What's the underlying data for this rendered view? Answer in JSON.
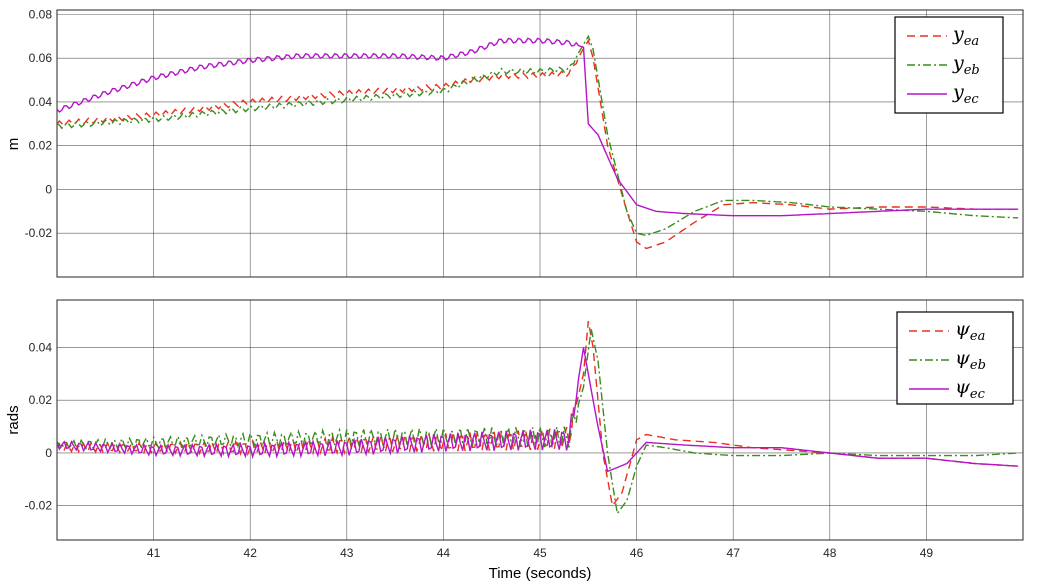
{
  "chart_data": [
    {
      "type": "line",
      "ylabel": "m",
      "xlim": [
        40.0,
        50.0
      ],
      "ylim": [
        -0.04,
        0.082
      ],
      "x_ticks": [
        "41",
        "42",
        "43",
        "44",
        "45",
        "46",
        "47",
        "48",
        "49"
      ],
      "y_ticks": [
        "0.08",
        "0.06",
        "0.04",
        "0.02",
        "0",
        "-0.02"
      ],
      "grid": true,
      "legend_position": "top-right",
      "legend": [
        {
          "main": "y",
          "sub": "ea"
        },
        {
          "main": "y",
          "sub": "eb"
        },
        {
          "main": "y",
          "sub": "ec"
        }
      ],
      "series": [
        {
          "name": "y_ea",
          "color": "#e8301e",
          "dash": "8,5",
          "points": [
            [
              40,
              0.03
            ],
            [
              41,
              0.034
            ],
            [
              42,
              0.04
            ],
            [
              43,
              0.044
            ],
            [
              44,
              0.047
            ],
            [
              44.3,
              0.05
            ],
            [
              44.6,
              0.052
            ],
            [
              45,
              0.052
            ],
            [
              45.3,
              0.053
            ],
            [
              45.5,
              0.068
            ],
            [
              45.55,
              0.06
            ],
            [
              45.7,
              0.02
            ],
            [
              45.9,
              -0.01
            ],
            [
              46,
              -0.024
            ],
            [
              46.1,
              -0.027
            ],
            [
              46.3,
              -0.024
            ],
            [
              46.6,
              -0.015
            ],
            [
              46.9,
              -0.007
            ],
            [
              47.2,
              -0.006
            ],
            [
              47.6,
              -0.007
            ],
            [
              48,
              -0.009
            ],
            [
              48.5,
              -0.008
            ],
            [
              49,
              -0.008
            ],
            [
              49.5,
              -0.009
            ],
            [
              49.95,
              -0.009
            ]
          ]
        },
        {
          "name": "y_eb",
          "color": "#3a8c1e",
          "dash": "8,3,2,3",
          "points": [
            [
              40,
              0.029
            ],
            [
              41,
              0.032
            ],
            [
              42,
              0.037
            ],
            [
              43,
              0.041
            ],
            [
              44,
              0.045
            ],
            [
              44.3,
              0.05
            ],
            [
              44.6,
              0.054
            ],
            [
              45,
              0.054
            ],
            [
              45.3,
              0.055
            ],
            [
              45.5,
              0.07
            ],
            [
              45.55,
              0.064
            ],
            [
              45.7,
              0.025
            ],
            [
              45.9,
              -0.01
            ],
            [
              46,
              -0.02
            ],
            [
              46.1,
              -0.021
            ],
            [
              46.3,
              -0.018
            ],
            [
              46.6,
              -0.01
            ],
            [
              46.9,
              -0.005
            ],
            [
              47.2,
              -0.005
            ],
            [
              47.6,
              -0.006
            ],
            [
              48,
              -0.008
            ],
            [
              48.5,
              -0.009
            ],
            [
              49,
              -0.01
            ],
            [
              49.5,
              -0.012
            ],
            [
              49.95,
              -0.013
            ]
          ]
        },
        {
          "name": "y_ec",
          "color": "#b515c8",
          "dash": "",
          "points": [
            [
              40,
              0.036
            ],
            [
              40.5,
              0.044
            ],
            [
              41,
              0.051
            ],
            [
              41.5,
              0.056
            ],
            [
              42,
              0.059
            ],
            [
              42.5,
              0.061
            ],
            [
              43,
              0.061
            ],
            [
              43.5,
              0.061
            ],
            [
              44,
              0.06
            ],
            [
              44.3,
              0.063
            ],
            [
              44.6,
              0.068
            ],
            [
              45,
              0.068
            ],
            [
              45.3,
              0.067
            ],
            [
              45.45,
              0.065
            ],
            [
              45.5,
              0.03
            ],
            [
              45.6,
              0.025
            ],
            [
              45.8,
              0.005
            ],
            [
              46,
              -0.007
            ],
            [
              46.2,
              -0.01
            ],
            [
              46.5,
              -0.011
            ],
            [
              47,
              -0.012
            ],
            [
              47.5,
              -0.012
            ],
            [
              48,
              -0.011
            ],
            [
              48.5,
              -0.01
            ],
            [
              49,
              -0.009
            ],
            [
              49.5,
              -0.009
            ],
            [
              49.95,
              -0.009
            ]
          ]
        }
      ]
    },
    {
      "type": "line",
      "xlabel": "Time (seconds)",
      "ylabel": "rads",
      "xlim": [
        40.0,
        50.0
      ],
      "ylim": [
        -0.033,
        0.058
      ],
      "x_ticks": [
        "41",
        "42",
        "43",
        "44",
        "45",
        "46",
        "47",
        "48",
        "49"
      ],
      "y_ticks": [
        "0.04",
        "0.02",
        "0",
        "-0.02"
      ],
      "grid": true,
      "legend_position": "top-right",
      "legend": [
        {
          "main": "ψ",
          "sub": "ea"
        },
        {
          "main": "ψ",
          "sub": "eb"
        },
        {
          "main": "ψ",
          "sub": "ec"
        }
      ],
      "series": [
        {
          "name": "psi_ea",
          "color": "#e8301e",
          "dash": "8,5",
          "points": [
            [
              40,
              0.002
            ],
            [
              41,
              0.002
            ],
            [
              42,
              0.002
            ],
            [
              43,
              0.003
            ],
            [
              44,
              0.004
            ],
            [
              45,
              0.005
            ],
            [
              45.3,
              0.006
            ],
            [
              45.45,
              0.03
            ],
            [
              45.5,
              0.05
            ],
            [
              45.55,
              0.04
            ],
            [
              45.65,
              0.0
            ],
            [
              45.75,
              -0.02
            ],
            [
              45.85,
              -0.015
            ],
            [
              46,
              0.005
            ],
            [
              46.1,
              0.007
            ],
            [
              46.4,
              0.005
            ],
            [
              46.8,
              0.004
            ],
            [
              47.2,
              0.002
            ],
            [
              47.6,
              0.001
            ],
            [
              48,
              0.0
            ],
            [
              48.5,
              -0.002
            ],
            [
              49,
              -0.002
            ],
            [
              49.5,
              -0.004
            ],
            [
              49.95,
              -0.005
            ]
          ]
        },
        {
          "name": "psi_eb",
          "color": "#3a8c1e",
          "dash": "8,3,2,3",
          "points": [
            [
              40,
              0.003
            ],
            [
              41,
              0.004
            ],
            [
              42,
              0.005
            ],
            [
              43,
              0.006
            ],
            [
              44,
              0.006
            ],
            [
              45,
              0.006
            ],
            [
              45.3,
              0.006
            ],
            [
              45.45,
              0.025
            ],
            [
              45.53,
              0.047
            ],
            [
              45.6,
              0.035
            ],
            [
              45.7,
              0.0
            ],
            [
              45.8,
              -0.023
            ],
            [
              45.9,
              -0.018
            ],
            [
              46,
              -0.005
            ],
            [
              46.1,
              0.003
            ],
            [
              46.3,
              0.002
            ],
            [
              46.6,
              0.0
            ],
            [
              47,
              -0.001
            ],
            [
              47.5,
              -0.001
            ],
            [
              48,
              0.0
            ],
            [
              48.5,
              -0.001
            ],
            [
              49,
              -0.001
            ],
            [
              49.5,
              -0.001
            ],
            [
              49.95,
              0.0
            ]
          ]
        },
        {
          "name": "psi_ec",
          "color": "#b515c8",
          "dash": "",
          "points": [
            [
              40,
              0.003
            ],
            [
              41,
              0.001
            ],
            [
              42,
              0.001
            ],
            [
              43,
              0.002
            ],
            [
              44,
              0.004
            ],
            [
              45,
              0.005
            ],
            [
              45.3,
              0.005
            ],
            [
              45.45,
              0.04
            ],
            [
              45.5,
              0.03
            ],
            [
              45.6,
              0.01
            ],
            [
              45.7,
              -0.007
            ],
            [
              45.9,
              -0.004
            ],
            [
              46.1,
              0.004
            ],
            [
              46.5,
              0.003
            ],
            [
              47,
              0.002
            ],
            [
              47.5,
              0.002
            ],
            [
              48,
              0.0
            ],
            [
              48.5,
              -0.002
            ],
            [
              49,
              -0.002
            ],
            [
              49.5,
              -0.004
            ],
            [
              49.95,
              -0.005
            ]
          ]
        }
      ]
    }
  ]
}
